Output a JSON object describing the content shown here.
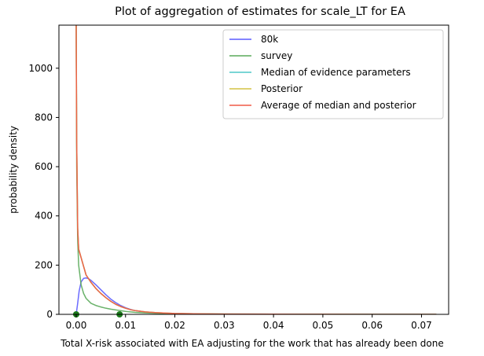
{
  "chart_data": {
    "type": "line",
    "title": "Plot of aggregation of estimates for scale_LT for EA",
    "xlabel": "Total X-risk associated with EA adjusting for the work that has already been done",
    "ylabel": "probability density",
    "xlim": [
      -0.0035,
      0.0755
    ],
    "ylim": [
      0,
      1175
    ],
    "xticks": [
      0.0,
      0.01,
      0.02,
      0.03,
      0.04,
      0.05,
      0.06,
      0.07
    ],
    "xtick_labels": [
      "0.00",
      "0.01",
      "0.02",
      "0.03",
      "0.04",
      "0.05",
      "0.06",
      "0.07"
    ],
    "yticks": [
      0,
      200,
      400,
      600,
      800,
      1000
    ],
    "ytick_labels": [
      "0",
      "200",
      "400",
      "600",
      "800",
      "1000"
    ],
    "grid": false,
    "legend_position": "top-right",
    "series": [
      {
        "name": "80k",
        "color": "#5b5bff",
        "x": [
          0.0,
          0.0003,
          0.0006,
          0.001,
          0.0015,
          0.002,
          0.0025,
          0.003,
          0.004,
          0.005,
          0.006,
          0.007,
          0.008,
          0.009,
          0.01,
          0.011,
          0.012,
          0.014,
          0.016,
          0.018,
          0.02,
          0.025,
          0.03,
          0.04,
          0.05,
          0.06,
          0.073
        ],
        "y": [
          0,
          45,
          95,
          132,
          146,
          148,
          145,
          138,
          120,
          100,
          80,
          62,
          48,
          36,
          27,
          20,
          15,
          9,
          6,
          4,
          3,
          1.5,
          1,
          0.5,
          0.3,
          0.2,
          0.1
        ]
      },
      {
        "name": "survey",
        "color": "#5aaa5a",
        "x": [
          0.0,
          0.0001,
          0.0003,
          0.0005,
          0.001,
          0.0015,
          0.002,
          0.003,
          0.004,
          0.005,
          0.006,
          0.007,
          0.008,
          0.009,
          0.01,
          0.012,
          0.014,
          0.016,
          0.018,
          0.02,
          0.025,
          0.03,
          0.04,
          0.05,
          0.06,
          0.073
        ],
        "y": [
          1175,
          600,
          300,
          200,
          120,
          85,
          65,
          45,
          36,
          30,
          25,
          21,
          18,
          15,
          12,
          8,
          6,
          4.5,
          3.5,
          2.5,
          1.5,
          1,
          0.5,
          0.3,
          0.2,
          0.1
        ]
      },
      {
        "name": "Median of evidence parameters",
        "color": "#4ec8c8",
        "x": [
          0.0,
          0.0001,
          0.0003,
          0.0005,
          0.001,
          0.0015,
          0.002,
          0.003,
          0.004,
          0.005,
          0.006,
          0.007,
          0.008,
          0.009,
          0.01,
          0.011,
          0.012,
          0.014,
          0.016,
          0.018,
          0.02,
          0.025,
          0.03,
          0.04,
          0.05,
          0.06,
          0.073
        ],
        "y": [
          1175,
          700,
          350,
          265,
          230,
          195,
          160,
          130,
          105,
          85,
          68,
          53,
          41,
          32,
          25,
          19,
          15,
          10,
          7,
          5,
          3.5,
          2,
          1.2,
          0.6,
          0.3,
          0.2,
          0.1
        ]
      },
      {
        "name": "Posterior",
        "color": "#d4c244",
        "x": [
          0.0,
          0.0001,
          0.0003,
          0.0005,
          0.001,
          0.0015,
          0.002,
          0.003,
          0.004,
          0.005,
          0.006,
          0.007,
          0.008,
          0.009,
          0.01,
          0.011,
          0.012,
          0.014,
          0.016,
          0.018,
          0.02,
          0.025,
          0.03,
          0.04,
          0.05,
          0.06,
          0.073
        ],
        "y": [
          1175,
          700,
          350,
          265,
          230,
          195,
          160,
          130,
          105,
          85,
          68,
          53,
          41,
          32,
          25,
          19,
          15,
          10,
          7,
          5,
          3.5,
          2,
          1.2,
          0.6,
          0.3,
          0.2,
          0.1
        ]
      },
      {
        "name": "Average of median and posterior",
        "color": "#f05a46",
        "x": [
          0.0,
          0.0001,
          0.0003,
          0.0005,
          0.001,
          0.0015,
          0.002,
          0.003,
          0.004,
          0.005,
          0.006,
          0.007,
          0.008,
          0.009,
          0.01,
          0.011,
          0.012,
          0.014,
          0.016,
          0.018,
          0.02,
          0.025,
          0.03,
          0.04,
          0.05,
          0.06,
          0.073
        ],
        "y": [
          1175,
          700,
          350,
          265,
          230,
          195,
          160,
          130,
          105,
          85,
          68,
          53,
          41,
          32,
          25,
          19,
          15,
          10,
          7,
          5,
          3.5,
          2,
          1.2,
          0.6,
          0.3,
          0.2,
          0.1
        ]
      }
    ],
    "markers": {
      "color": "#1a7a1a",
      "x": [
        0.0,
        0.0088
      ],
      "y": [
        0,
        0
      ]
    }
  }
}
